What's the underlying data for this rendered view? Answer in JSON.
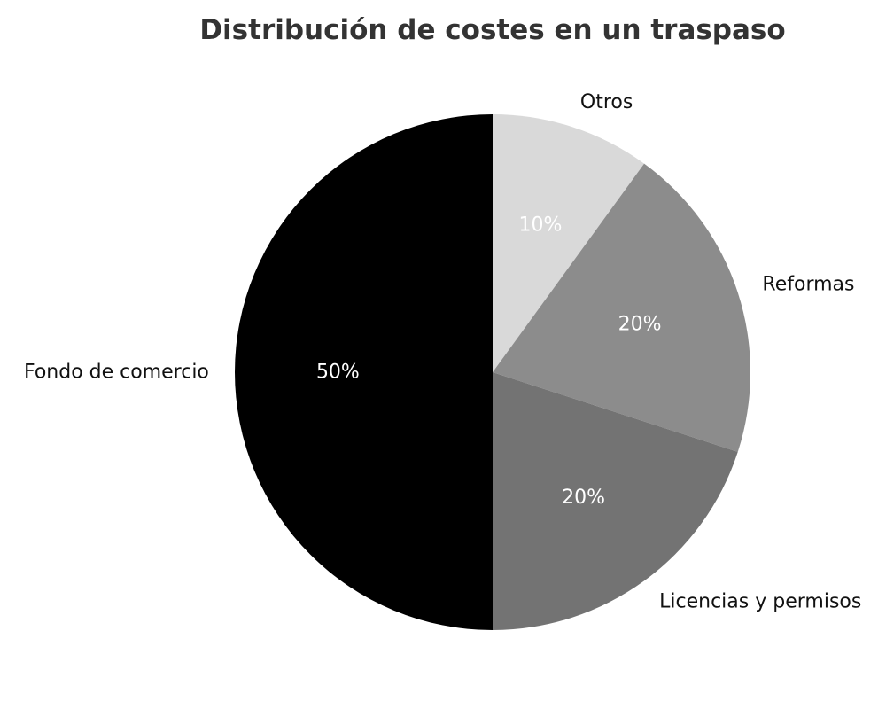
{
  "chart_data": {
    "type": "pie",
    "title": "Distribución de costes en un traspaso",
    "slices": [
      {
        "label": "Otros",
        "value": 10,
        "display": "10%",
        "color": "#d9d9d9"
      },
      {
        "label": "Reformas",
        "value": 20,
        "display": "20%",
        "color": "#8c8c8c"
      },
      {
        "label": "Licencias y permisos",
        "value": 20,
        "display": "20%",
        "color": "#737373"
      },
      {
        "label": "Fondo de comercio",
        "value": 50,
        "display": "50%",
        "color": "#000000"
      }
    ],
    "start_angle": "top",
    "direction": "clockwise"
  }
}
